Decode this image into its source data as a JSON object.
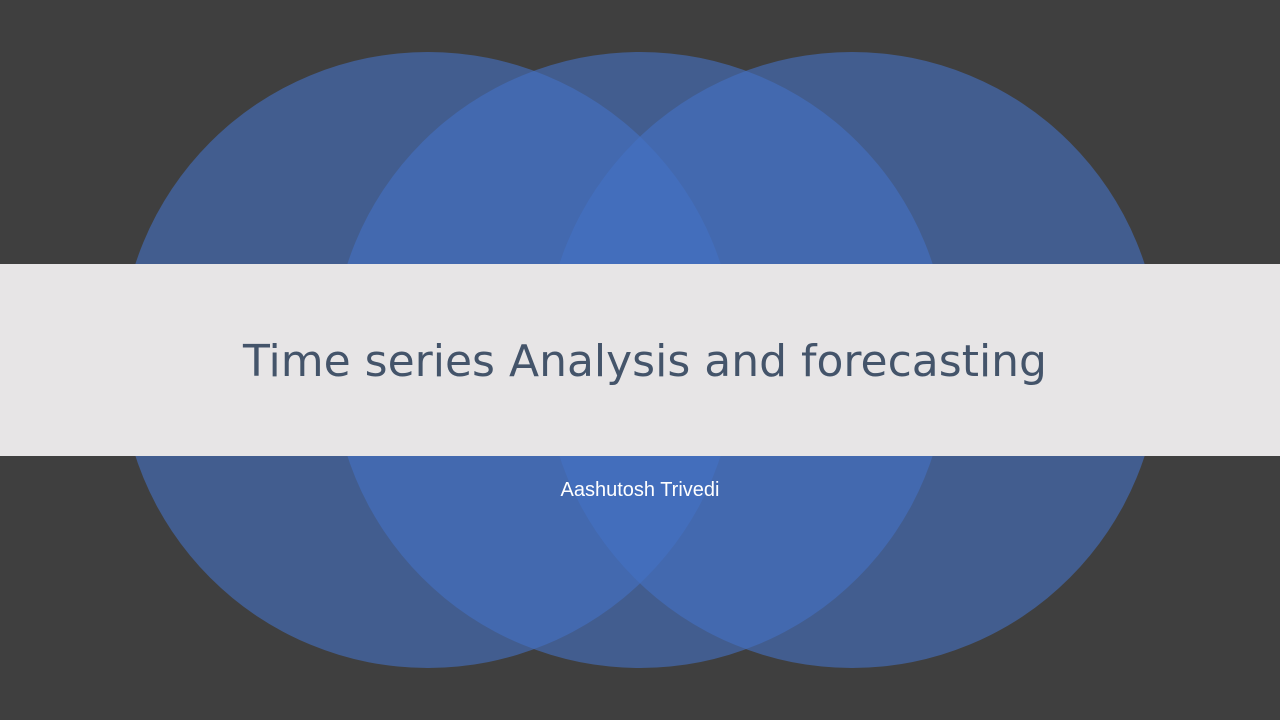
{
  "slide": {
    "title": "Time series Analysis and forecasting",
    "subtitle": "Aashutosh Trivedi"
  },
  "colors": {
    "background": "#3f3f3f",
    "circle_fill": "#4472c4",
    "band": "#e7e5e6",
    "title_text": "#44546a",
    "subtitle_text": "#ffffff"
  }
}
